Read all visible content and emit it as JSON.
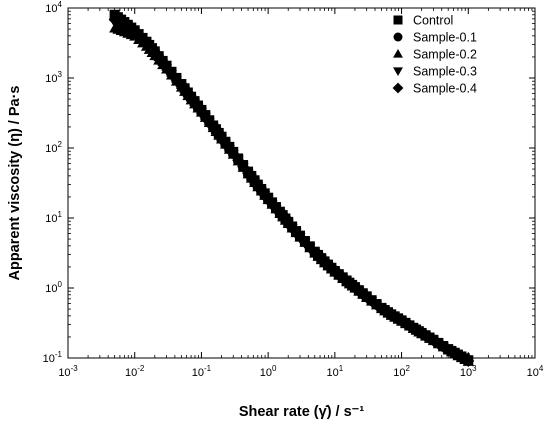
{
  "chart_data": {
    "type": "scatter",
    "xscale": "log",
    "yscale": "log",
    "xlim": [
      0.001,
      10000
    ],
    "ylim": [
      0.1,
      10000
    ],
    "grid": false,
    "legend_position": "top-right",
    "xlabel": "Shear rate (γ̇) / s⁻¹",
    "ylabel": "Apparent viscosity (η) / Pa·s",
    "x_tick_labels": [
      {
        "value": 0.001,
        "base": "10",
        "exp": "-3"
      },
      {
        "value": 0.01,
        "base": "10",
        "exp": "-2"
      },
      {
        "value": 0.1,
        "base": "10",
        "exp": "-1"
      },
      {
        "value": 1,
        "base": "10",
        "exp": "0"
      },
      {
        "value": 10,
        "base": "10",
        "exp": "1"
      },
      {
        "value": 100,
        "base": "10",
        "exp": "2"
      },
      {
        "value": 1000,
        "base": "10",
        "exp": "3"
      },
      {
        "value": 10000,
        "base": "10",
        "exp": "4"
      }
    ],
    "y_tick_labels": [
      {
        "value": 0.1,
        "base": "10",
        "exp": "-1"
      },
      {
        "value": 1,
        "base": "10",
        "exp": "0"
      },
      {
        "value": 10,
        "base": "10",
        "exp": "1"
      },
      {
        "value": 100,
        "base": "10",
        "exp": "2"
      },
      {
        "value": 1000,
        "base": "10",
        "exp": "3"
      },
      {
        "value": 10000,
        "base": "10",
        "exp": "4"
      }
    ],
    "x": [
      0.005,
      0.007,
      0.01,
      0.015,
      0.02,
      0.03,
      0.05,
      0.07,
      0.1,
      0.15,
      0.2,
      0.3,
      0.5,
      0.7,
      1,
      1.5,
      2,
      3,
      5,
      7,
      10,
      15,
      20,
      30,
      50,
      70,
      100,
      150,
      200,
      300,
      500,
      700,
      1000
    ],
    "series": [
      {
        "name": "Control",
        "marker": "square",
        "color": "#000000",
        "values": [
          8000,
          6300,
          4800,
          3300,
          2400,
          1500,
          820,
          540,
          350,
          210,
          145,
          88,
          46,
          30,
          19.5,
          12.3,
          8.8,
          5.6,
          3.3,
          2.4,
          1.75,
          1.28,
          1.03,
          0.76,
          0.52,
          0.42,
          0.345,
          0.27,
          0.228,
          0.182,
          0.134,
          0.112,
          0.093
        ]
      },
      {
        "name": "Sample-0.1",
        "marker": "circle",
        "color": "#000000",
        "values": [
          7200,
          5900,
          4500,
          3100,
          2250,
          1420,
          780,
          510,
          335,
          200,
          138,
          84,
          44,
          28.5,
          18.6,
          11.8,
          8.4,
          5.4,
          3.2,
          2.3,
          1.7,
          1.24,
          1.0,
          0.74,
          0.51,
          0.41,
          0.338,
          0.265,
          0.223,
          0.178,
          0.131,
          0.109,
          0.091
        ]
      },
      {
        "name": "Sample-0.2",
        "marker": "triangle-up",
        "color": "#000000",
        "values": [
          5100,
          4500,
          3900,
          2800,
          2050,
          1320,
          730,
          480,
          320,
          192,
          132,
          80,
          42,
          27.5,
          18.0,
          11.4,
          8.2,
          5.25,
          3.1,
          2.25,
          1.66,
          1.21,
          0.98,
          0.72,
          0.5,
          0.4,
          0.33,
          0.26,
          0.218,
          0.174,
          0.128,
          0.106,
          0.088
        ]
      },
      {
        "name": "Sample-0.3",
        "marker": "triangle-down",
        "color": "#000000",
        "values": [
          6200,
          5400,
          4300,
          3000,
          2200,
          1380,
          760,
          495,
          328,
          196,
          135,
          82,
          43,
          28,
          18.3,
          11.6,
          8.3,
          5.3,
          3.15,
          2.28,
          1.68,
          1.22,
          0.99,
          0.73,
          0.505,
          0.405,
          0.333,
          0.262,
          0.22,
          0.176,
          0.13,
          0.108,
          0.09
        ]
      },
      {
        "name": "Sample-0.4",
        "marker": "diamond",
        "color": "#000000",
        "values": [
          6800,
          5700,
          4400,
          3050,
          2230,
          1400,
          770,
          500,
          330,
          198,
          136,
          83,
          43.5,
          28.2,
          18.4,
          11.7,
          8.35,
          5.35,
          3.17,
          2.29,
          1.69,
          1.23,
          0.995,
          0.735,
          0.507,
          0.407,
          0.335,
          0.263,
          0.221,
          0.177,
          0.1305,
          0.1085,
          0.0905
        ]
      }
    ]
  }
}
